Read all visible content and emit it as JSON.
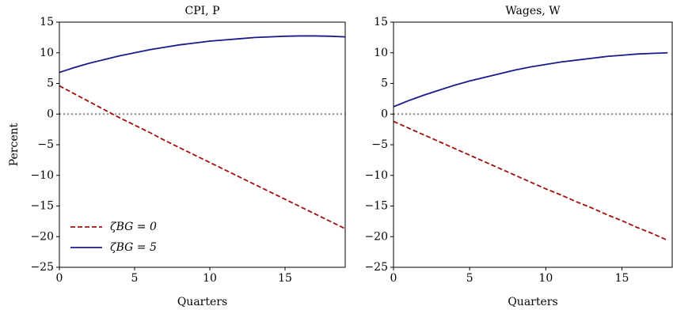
{
  "chart_data": [
    {
      "type": "line",
      "title": "CPI, P",
      "xlabel": "Quarters",
      "ylabel": "Percent",
      "x": [
        0,
        1,
        2,
        3,
        4,
        5,
        6,
        7,
        8,
        9,
        10,
        11,
        12,
        13,
        14,
        15,
        16,
        17,
        18,
        19
      ],
      "xlim": [
        0,
        19
      ],
      "xticks": [
        0,
        5,
        10,
        15
      ],
      "ylim": [
        -25,
        15
      ],
      "yticks": [
        {
          "value": -25,
          "label": "−25"
        },
        {
          "value": -20,
          "label": "−20"
        },
        {
          "value": -15,
          "label": "−15"
        },
        {
          "value": -10,
          "label": "−10"
        },
        {
          "value": -5,
          "label": "−5"
        },
        0,
        5,
        10,
        15
      ],
      "hline": 0,
      "legend": "lower left",
      "series": [
        {
          "name": "ζBG = 0",
          "color": "#a01010",
          "dash": true,
          "values": [
            4.6,
            3.3,
            2.0,
            0.7,
            -0.6,
            -1.8,
            -3.0,
            -4.3,
            -5.5,
            -6.7,
            -7.9,
            -9.1,
            -10.3,
            -11.5,
            -12.7,
            -13.9,
            -15.1,
            -16.3,
            -17.5,
            -18.7
          ]
        },
        {
          "name": "ζBG = 5",
          "color": "#1a1a8c",
          "dash": false,
          "values": [
            6.8,
            7.6,
            8.3,
            8.9,
            9.5,
            10.0,
            10.5,
            10.9,
            11.3,
            11.6,
            11.9,
            12.1,
            12.3,
            12.5,
            12.6,
            12.7,
            12.75,
            12.75,
            12.7,
            12.6
          ]
        }
      ]
    },
    {
      "type": "line",
      "title": "Wages, W",
      "xlabel": "Quarters",
      "x": [
        0,
        1,
        2,
        3,
        4,
        5,
        6,
        7,
        8,
        9,
        10,
        11,
        12,
        13,
        14,
        15,
        16,
        17,
        18
      ],
      "xlim": [
        0,
        18.3
      ],
      "xticks": [
        0,
        5,
        10,
        15
      ],
      "ylim": [
        -25,
        15
      ],
      "yticks": [
        {
          "value": -25,
          "label": "−25"
        },
        {
          "value": -20,
          "label": "−20"
        },
        {
          "value": -15,
          "label": "−15"
        },
        {
          "value": -10,
          "label": "−10"
        },
        {
          "value": -5,
          "label": "−5"
        },
        0,
        5,
        10,
        15
      ],
      "hline": 0,
      "series": [
        {
          "color": "#a01010",
          "dash": true,
          "values": [
            -1.2,
            -2.3,
            -3.4,
            -4.5,
            -5.6,
            -6.7,
            -7.8,
            -8.9,
            -10.0,
            -11.1,
            -12.2,
            -13.2,
            -14.3,
            -15.3,
            -16.4,
            -17.4,
            -18.5,
            -19.5,
            -20.6
          ]
        },
        {
          "color": "#1a1a8c",
          "dash": false,
          "values": [
            1.2,
            2.2,
            3.1,
            3.9,
            4.7,
            5.4,
            6.0,
            6.6,
            7.2,
            7.7,
            8.1,
            8.5,
            8.8,
            9.1,
            9.4,
            9.6,
            9.8,
            9.9,
            10.0
          ]
        }
      ]
    }
  ]
}
